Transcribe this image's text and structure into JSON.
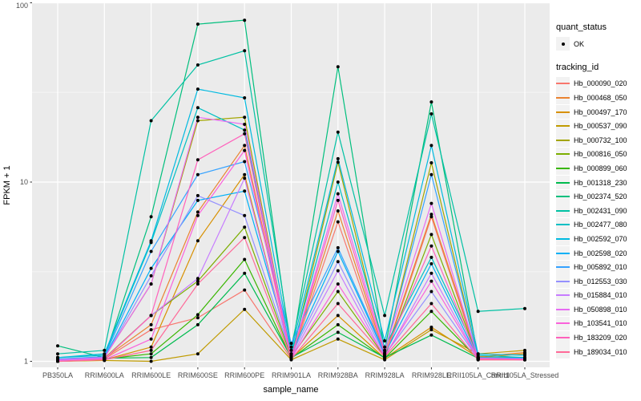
{
  "figure": {
    "panel_bg": "#EBEBEB",
    "grid_major_color": "#FFFFFF",
    "grid_minor_color": "#F5F5F5",
    "tick_label_color": "#4D4D4D",
    "axis_title_color": "#000000",
    "point_color": "#000000"
  },
  "legend": {
    "quant_status_title": "quant_status",
    "quant_status_items": [
      "OK"
    ],
    "series_title": "tracking_id"
  },
  "chart_data": {
    "type": "line",
    "xlabel": "sample_name",
    "ylabel": "FPKM + 1",
    "y_scale": "log10",
    "y_ticks": [
      1,
      10,
      100
    ],
    "y_minor_ticks": [
      3.162,
      31.62
    ],
    "ylim": [
      0.93,
      102
    ],
    "grid": true,
    "legend_position": "right",
    "marker": "point",
    "categories": [
      "PB350LA",
      "RRIM600LA",
      "RRIM600LE",
      "RRIM600SE",
      "RRIM600PE",
      "RRIM901LA",
      "RRIM928BA",
      "RRIM928LA",
      "RRIM928LE",
      "RRII105LA_Control",
      "RRII105LA_Stressed"
    ],
    "series": [
      {
        "name": "Hb_000090_020",
        "color": "#F8766D",
        "values": [
          1.01,
          1.03,
          1.5,
          1.75,
          2.5,
          1.03,
          6.0,
          1.05,
          6.4,
          1.02,
          1.02
        ]
      },
      {
        "name": "Hb_000468_050",
        "color": "#EA8331",
        "values": [
          1.02,
          1.04,
          1.6,
          6.8,
          16.0,
          1.05,
          6.9,
          1.08,
          6.6,
          1.06,
          1.12
        ]
      },
      {
        "name": "Hb_000497_170",
        "color": "#D89000",
        "values": [
          1.0,
          1.02,
          1.2,
          4.7,
          11.0,
          1.04,
          1.8,
          1.04,
          1.55,
          1.05,
          1.1
        ]
      },
      {
        "name": "Hb_000537_090",
        "color": "#C09B00",
        "values": [
          1.0,
          1.01,
          1.0,
          1.1,
          1.95,
          1.02,
          1.33,
          1.02,
          1.5,
          1.1,
          1.15
        ]
      },
      {
        "name": "Hb_000732_100",
        "color": "#A3A500",
        "values": [
          1.02,
          1.05,
          2.7,
          22.0,
          23.0,
          1.05,
          12.9,
          1.1,
          12.8,
          1.05,
          1.05
        ]
      },
      {
        "name": "Hb_000816_050",
        "color": "#7CAE00",
        "values": [
          1.01,
          1.04,
          1.8,
          2.8,
          5.6,
          1.06,
          2.45,
          1.06,
          5.1,
          1.04,
          1.03
        ]
      },
      {
        "name": "Hb_000899_060",
        "color": "#39B600",
        "values": [
          1.02,
          1.03,
          1.1,
          1.82,
          3.7,
          1.04,
          1.6,
          1.04,
          1.9,
          1.03,
          1.03
        ]
      },
      {
        "name": "Hb_001318_230",
        "color": "#00BB4E",
        "values": [
          1.03,
          1.04,
          1.05,
          1.6,
          3.1,
          1.05,
          1.45,
          1.05,
          1.4,
          1.04,
          1.04
        ]
      },
      {
        "name": "Hb_002374_520",
        "color": "#00BF7D",
        "values": [
          1.22,
          1.05,
          6.4,
          76.0,
          80.0,
          1.1,
          44.0,
          1.15,
          28.0,
          1.05,
          1.05
        ]
      },
      {
        "name": "Hb_002431_090",
        "color": "#00C1A3",
        "values": [
          1.1,
          1.15,
          22.0,
          45.0,
          54.0,
          1.2,
          19.0,
          1.8,
          24.0,
          1.9,
          1.97
        ]
      },
      {
        "name": "Hb_002477_080",
        "color": "#00BFC4",
        "values": [
          1.05,
          1.08,
          4.6,
          26.0,
          19.5,
          1.1,
          10.0,
          1.2,
          3.8,
          1.08,
          1.05
        ]
      },
      {
        "name": "Hb_002592_070",
        "color": "#00BAE0",
        "values": [
          1.05,
          1.1,
          4.7,
          33.0,
          29.5,
          1.15,
          13.5,
          1.3,
          16.0,
          1.1,
          1.08
        ]
      },
      {
        "name": "Hb_002598_020",
        "color": "#00B0F6",
        "values": [
          1.02,
          1.05,
          3.3,
          7.9,
          8.9,
          1.1,
          4.1,
          1.1,
          3.5,
          1.04,
          1.03
        ]
      },
      {
        "name": "Hb_005892_010",
        "color": "#35A2FF",
        "values": [
          1.03,
          1.06,
          4.1,
          11.0,
          13.0,
          1.26,
          4.3,
          1.12,
          11.0,
          1.05,
          1.04
        ]
      },
      {
        "name": "Hb_012553_030",
        "color": "#9590FF",
        "values": [
          1.02,
          1.04,
          3.0,
          8.4,
          6.5,
          1.08,
          3.6,
          1.08,
          2.45,
          1.03,
          1.02
        ]
      },
      {
        "name": "Hb_015884_010",
        "color": "#C77CFF",
        "values": [
          1.01,
          1.03,
          1.8,
          2.9,
          10.5,
          1.05,
          3.2,
          1.05,
          3.1,
          1.03,
          1.02
        ]
      },
      {
        "name": "Hb_050898_010",
        "color": "#E76BF3",
        "values": [
          1.02,
          1.05,
          2.7,
          23.0,
          21.0,
          1.05,
          8.6,
          1.15,
          7.6,
          1.04,
          1.03
        ]
      },
      {
        "name": "Hb_103541_010",
        "color": "#FA62DB",
        "values": [
          1.0,
          1.02,
          1.33,
          6.5,
          15.0,
          1.04,
          2.7,
          1.07,
          2.8,
          1.03,
          1.02
        ]
      },
      {
        "name": "Hb_183209_020",
        "color": "#FF62BC",
        "values": [
          1.0,
          1.03,
          1.8,
          13.3,
          18.6,
          1.04,
          7.9,
          1.1,
          4.4,
          1.03,
          1.02
        ]
      },
      {
        "name": "Hb_189034_010",
        "color": "#FF6A98",
        "values": [
          1.0,
          1.02,
          1.15,
          2.7,
          4.9,
          1.03,
          2.1,
          1.06,
          2.1,
          1.02,
          1.02
        ]
      }
    ]
  }
}
